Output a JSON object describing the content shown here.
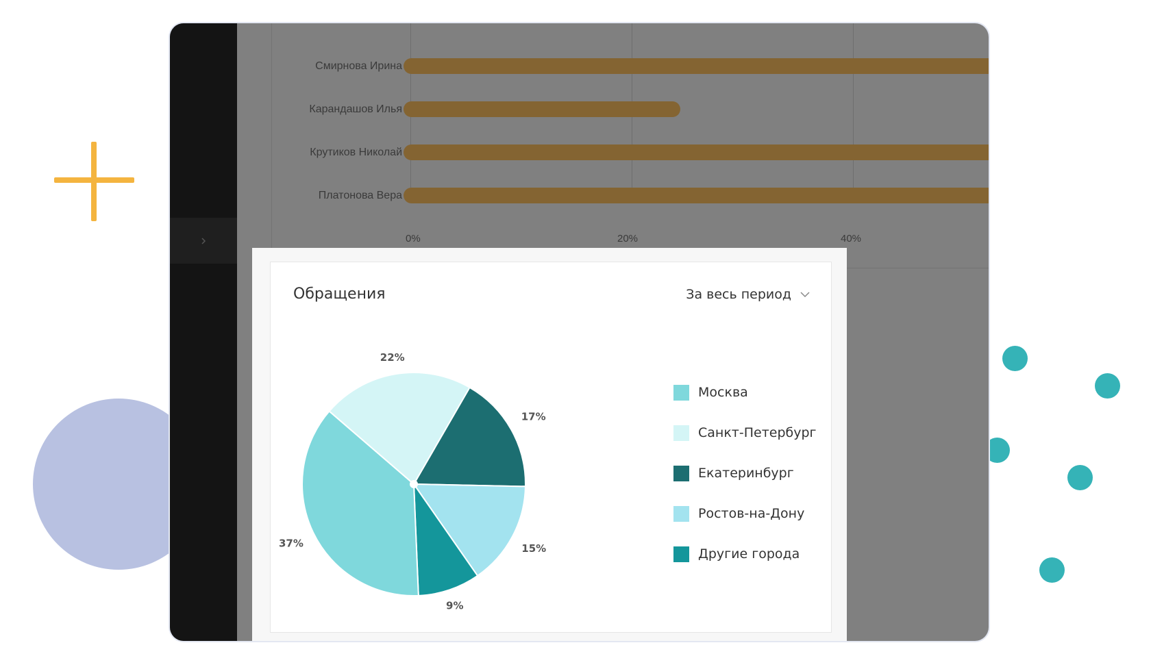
{
  "bar_chart": {
    "rows": [
      {
        "name": "Смирнова Ирина",
        "value_pct": 60
      },
      {
        "name": "Карандашов Илья",
        "value_pct": 25
      },
      {
        "name": "Крутиков Николай",
        "value_pct": 60
      },
      {
        "name": "Платонова Вера",
        "value_pct": 60
      }
    ],
    "ticks": [
      "0%",
      "20%",
      "40%"
    ],
    "tick_values": [
      0,
      20,
      40
    ],
    "bar_color": "#846432"
  },
  "pie_card": {
    "title": "Обращения",
    "period_label": "За весь период"
  },
  "chart_data": {
    "type": "pie",
    "categories": [
      "Москва",
      "Санкт-Петербург",
      "Екатеринбург",
      "Ростов-на-Дону",
      "Другие города"
    ],
    "values": [
      37,
      22,
      17,
      15,
      9
    ],
    "labels": [
      "37%",
      "22%",
      "17%",
      "15%",
      "9%"
    ],
    "colors": [
      "#7fd8dc",
      "#d4f5f6",
      "#1c6e71",
      "#a3e3ef",
      "#14969b"
    ],
    "legend_placement": "right"
  },
  "decor": {
    "plus_color": "#f4b43f",
    "circle_color": "#b8c1e1",
    "dot_color": "#35b3b7"
  }
}
